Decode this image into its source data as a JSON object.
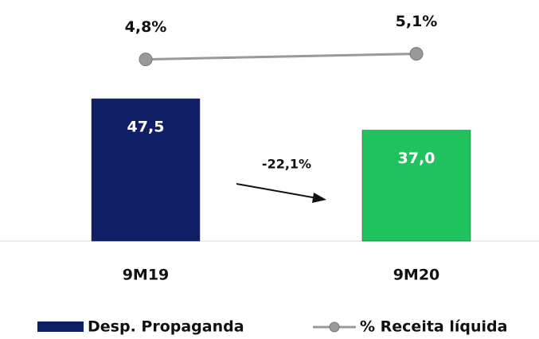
{
  "chart_data": {
    "type": "bar_line",
    "categories": [
      "9M19",
      "9M20"
    ],
    "series": [
      {
        "name": "Desp. Propaganda",
        "type": "bar",
        "color": "#0e1f66",
        "colors": [
          "#0e1f66",
          "#1fc25c"
        ],
        "values": [
          47.5,
          37.0
        ],
        "value_labels": [
          "47,5",
          "37,0"
        ]
      },
      {
        "name": "% Receita líquida",
        "type": "line",
        "axis": "y2",
        "color": "#999999",
        "values": [
          4.8,
          5.1
        ],
        "value_labels": [
          "4,8%",
          "5,1%"
        ]
      }
    ],
    "annotation": "-22,1%",
    "ylim": [
      0,
      56
    ],
    "y2lim": [
      -5,
      8
    ]
  }
}
